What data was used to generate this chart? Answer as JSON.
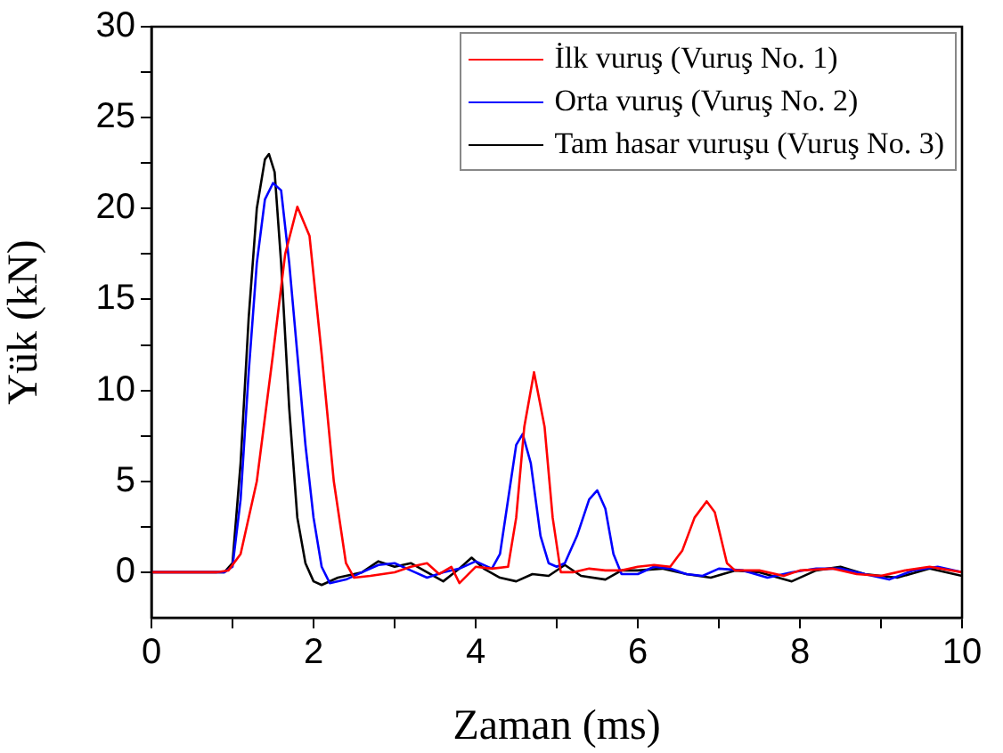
{
  "chart_data": {
    "type": "line",
    "xlabel": "Zaman (ms)",
    "ylabel": "Yük (kN)",
    "xlim": [
      0,
      10
    ],
    "ylim": [
      -2.5,
      30
    ],
    "xticks": [
      0,
      {
        "value": 1,
        "label": null
      },
      2,
      {
        "value": 3,
        "label": null
      },
      4,
      {
        "value": 5,
        "label": null
      },
      6,
      {
        "value": 7,
        "label": null
      },
      8,
      {
        "value": 9,
        "label": null
      },
      10
    ],
    "yticks": [
      0,
      {
        "value": 2.5,
        "label": null
      },
      5,
      {
        "value": 7.5,
        "label": null
      },
      10,
      {
        "value": 12.5,
        "label": null
      },
      15,
      {
        "value": 17.5,
        "label": null
      },
      20,
      {
        "value": 22.5,
        "label": null
      },
      25,
      {
        "value": 27.5,
        "label": null
      },
      30
    ],
    "grid": false,
    "legend": "top right",
    "marker": "none",
    "line_style": "solid",
    "series": [
      {
        "name": "İlk vuruş (Vuruş No. 1)",
        "color": "#ff0000",
        "x": [
          0,
          0.8,
          0.95,
          1.1,
          1.3,
          1.5,
          1.65,
          1.8,
          1.95,
          2.1,
          2.25,
          2.4,
          2.5,
          2.7,
          3.0,
          3.2,
          3.4,
          3.55,
          3.7,
          3.8,
          4.0,
          4.2,
          4.4,
          4.5,
          4.6,
          4.72,
          4.85,
          4.95,
          5.05,
          5.2,
          5.4,
          5.6,
          5.8,
          6.0,
          6.2,
          6.4,
          6.55,
          6.7,
          6.85,
          6.95,
          7.1,
          7.2,
          7.5,
          7.8,
          8.0,
          8.4,
          8.7,
          9.0,
          9.3,
          9.6,
          10
        ],
        "values": [
          0,
          0,
          0.1,
          1,
          5,
          12,
          17.5,
          20.1,
          18.5,
          12,
          5,
          0.5,
          -0.3,
          -0.2,
          0,
          0.3,
          0.5,
          -0.1,
          0.3,
          -0.6,
          0.3,
          0.2,
          0.3,
          3,
          8,
          11,
          8,
          3,
          0,
          0,
          0.2,
          0.1,
          0.1,
          0.3,
          0.4,
          0.3,
          1.2,
          3,
          3.9,
          3.3,
          0.5,
          0.1,
          0.1,
          -0.2,
          0.1,
          0.2,
          -0.1,
          -0.2,
          0.1,
          0.3,
          0
        ]
      },
      {
        "name": "Orta vuruş (Vuruş No. 2)",
        "color": "#0000ff",
        "x": [
          0,
          0.9,
          1.0,
          1.1,
          1.2,
          1.3,
          1.4,
          1.5,
          1.6,
          1.7,
          1.8,
          1.9,
          2.0,
          2.1,
          2.2,
          2.4,
          2.6,
          2.8,
          3.0,
          3.2,
          3.4,
          3.6,
          3.8,
          4.0,
          4.2,
          4.3,
          4.4,
          4.5,
          4.58,
          4.68,
          4.8,
          4.9,
          5.0,
          5.1,
          5.25,
          5.4,
          5.5,
          5.6,
          5.7,
          5.8,
          6.0,
          6.2,
          6.4,
          6.6,
          6.8,
          7.0,
          7.3,
          7.6,
          7.9,
          8.2,
          8.5,
          8.8,
          9.1,
          9.4,
          9.7,
          10
        ],
        "values": [
          0,
          0,
          0.3,
          4,
          11,
          17,
          20.5,
          21.4,
          21,
          17,
          12,
          7,
          3,
          0.3,
          -0.6,
          -0.4,
          0,
          0.4,
          0.5,
          0.1,
          -0.3,
          0,
          0.2,
          0.6,
          0.2,
          1,
          4,
          7,
          7.6,
          6,
          2,
          0.5,
          0.3,
          0.5,
          2,
          4,
          4.5,
          3.5,
          1,
          -0.1,
          -0.1,
          0.3,
          0.2,
          -0.1,
          -0.2,
          0.2,
          0.1,
          -0.3,
          0,
          0.2,
          0.2,
          -0.1,
          -0.4,
          0.1,
          0.3,
          0
        ]
      },
      {
        "name": "Tam hasar vuruşu (Vuruş No. 3)",
        "color": "#000000",
        "x": [
          0,
          0.9,
          1.0,
          1.1,
          1.2,
          1.3,
          1.4,
          1.45,
          1.52,
          1.6,
          1.7,
          1.8,
          1.9,
          2.0,
          2.1,
          2.3,
          2.6,
          2.8,
          3.0,
          3.2,
          3.4,
          3.6,
          3.8,
          3.95,
          4.1,
          4.3,
          4.5,
          4.7,
          4.9,
          5.1,
          5.3,
          5.6,
          5.8,
          6.0,
          6.3,
          6.6,
          6.9,
          7.2,
          7.5,
          7.9,
          8.2,
          8.5,
          8.8,
          9.2,
          9.6,
          10
        ],
        "values": [
          0,
          0,
          0.5,
          6,
          14,
          20,
          22.7,
          23,
          22,
          17,
          9,
          3,
          0.5,
          -0.5,
          -0.7,
          -0.3,
          0,
          0.6,
          0.3,
          0.5,
          0,
          -0.5,
          0.2,
          0.8,
          0.2,
          -0.3,
          -0.5,
          -0.1,
          -0.2,
          0.4,
          -0.2,
          -0.4,
          0.1,
          0.1,
          0.2,
          -0.1,
          -0.3,
          0.1,
          0,
          -0.5,
          0.1,
          0.3,
          -0.1,
          -0.3,
          0.2,
          -0.2
        ]
      }
    ]
  }
}
